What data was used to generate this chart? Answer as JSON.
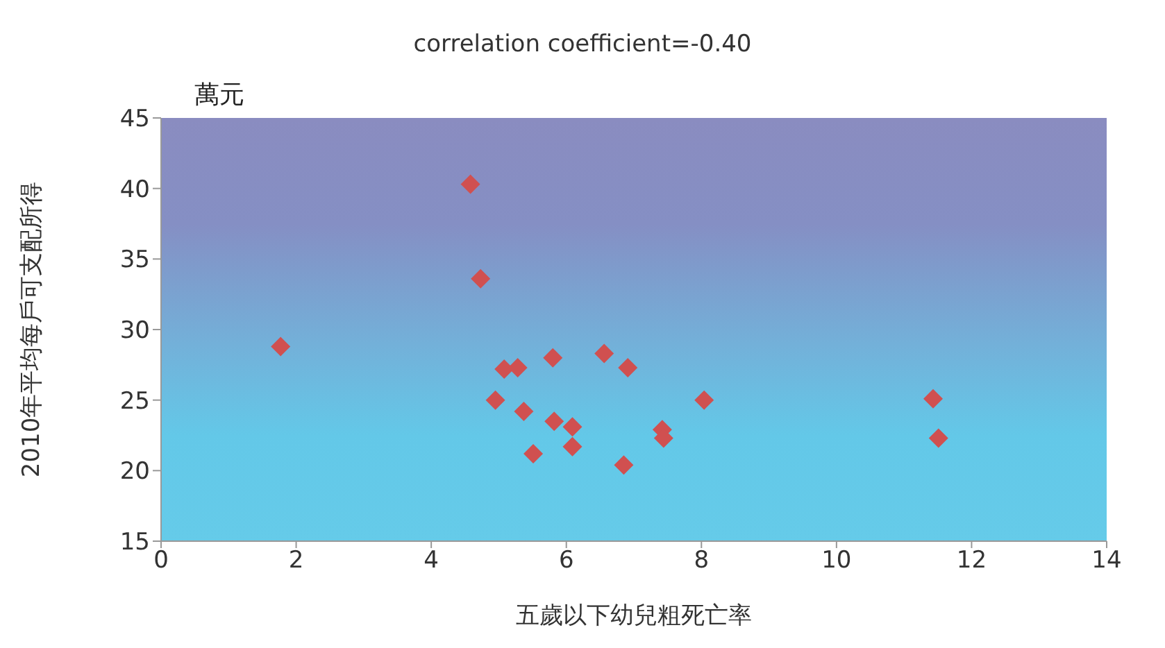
{
  "chart_data": {
    "type": "scatter",
    "title": "correlation coefficient=-0.40",
    "xlabel": "五歲以下幼兒粗死亡率",
    "ylabel": "2010年平均每戶可支配所得",
    "annotations": [
      "萬元"
    ],
    "x": [
      1.77,
      4.58,
      4.73,
      4.95,
      5.08,
      5.28,
      5.37,
      5.51,
      5.8,
      5.82,
      6.09,
      6.09,
      6.56,
      6.85,
      6.91,
      7.42,
      7.44,
      8.04,
      11.43,
      11.51
    ],
    "values": [
      28.8,
      40.3,
      33.6,
      25.0,
      27.2,
      27.3,
      24.2,
      21.2,
      28.0,
      23.5,
      23.1,
      21.7,
      28.3,
      20.4,
      27.3,
      22.9,
      22.3,
      25.0,
      25.1,
      22.3
    ],
    "color": "#d05050",
    "marker": "diamond",
    "xlim": [
      0,
      14
    ],
    "xticks": [
      0,
      2,
      4,
      6,
      8,
      10,
      12,
      14
    ],
    "ylim": [
      15,
      45
    ],
    "yticks": [
      15,
      20,
      25,
      30,
      35,
      40,
      45
    ],
    "grid": false,
    "legend": false
  }
}
